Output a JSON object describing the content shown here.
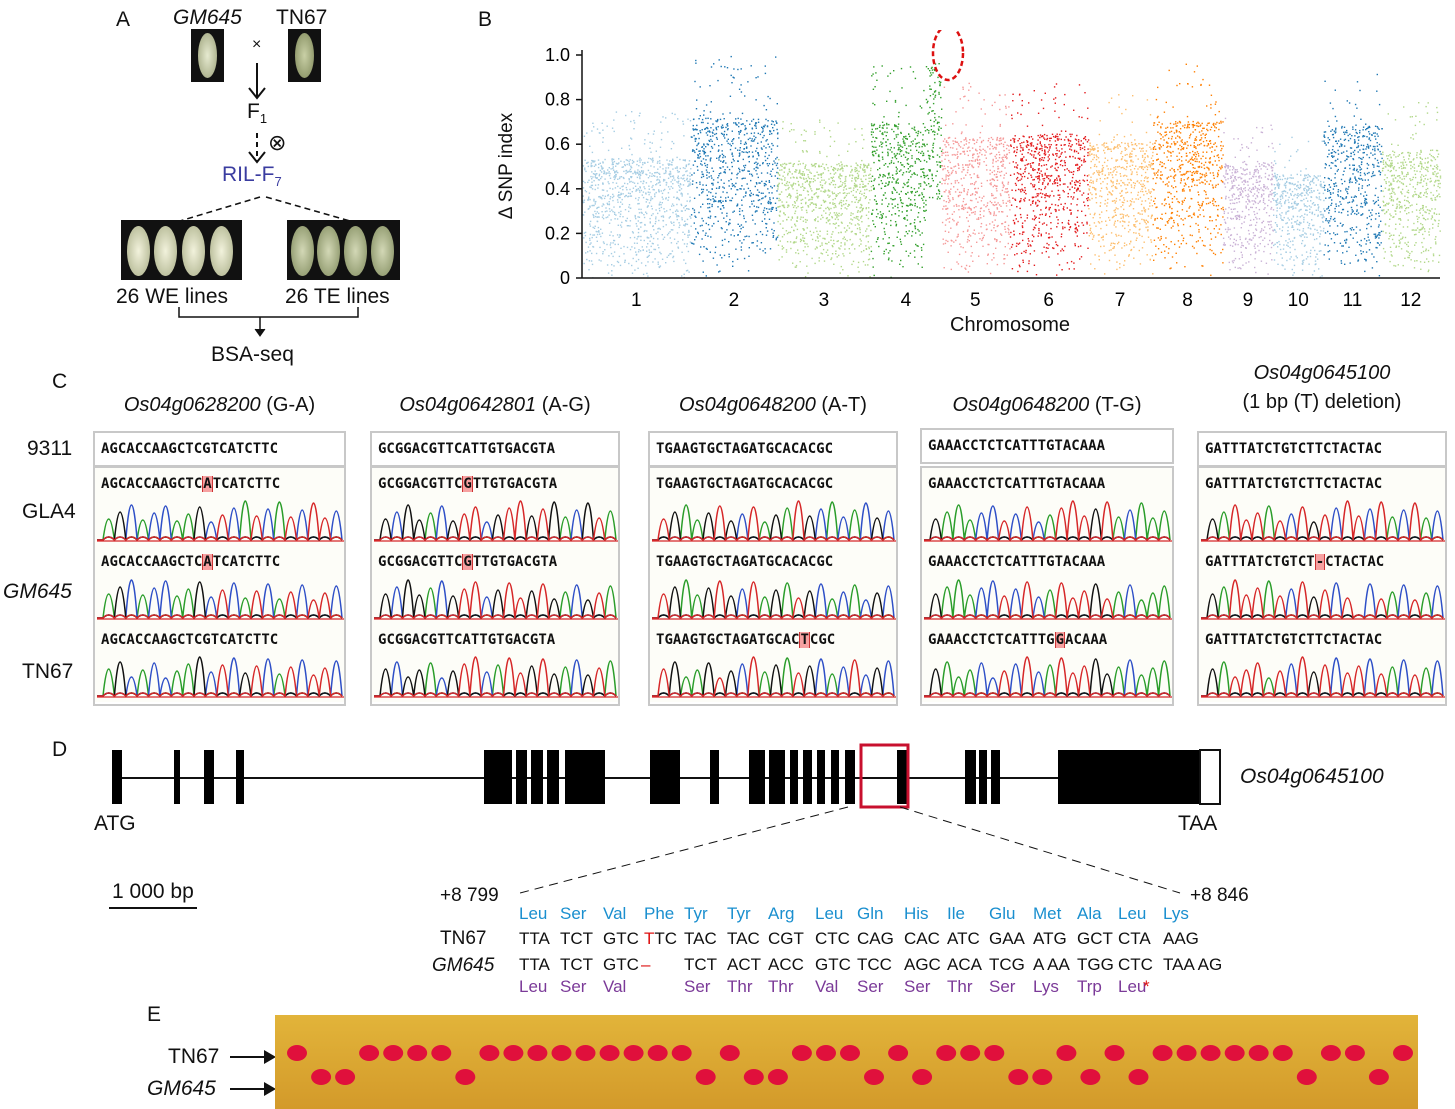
{
  "panel_a": {
    "label": "A",
    "parent1": "GM645",
    "parent2": "TN67",
    "cross_symbol": "×",
    "f1": "F",
    "f1_sub": "1",
    "self_symbol": "⊗",
    "ril": "RIL-F",
    "ril_sub": "7",
    "we_lines": "26 WE lines",
    "te_lines": "26 TE lines",
    "bsa": "BSA-seq"
  },
  "panel_b": {
    "label": "B",
    "ylabel": "Δ SNP index",
    "xlabel": "Chromosome",
    "yticks": [
      "0",
      "0.2",
      "0.4",
      "0.6",
      "0.8",
      "1.0"
    ],
    "chromosomes": [
      "1",
      "2",
      "3",
      "4",
      "5",
      "6",
      "7",
      "8",
      "9",
      "10",
      "11",
      "12"
    ],
    "colors": [
      "#a6cde3",
      "#1f78b4",
      "#b2d88a",
      "#33a02c",
      "#f59a99",
      "#e31a1c",
      "#fdbf6f",
      "#ff7f00",
      "#cab2d6",
      "#a6cde3",
      "#1f78b4",
      "#b2d88a"
    ]
  },
  "chart_data": {
    "type": "scatter",
    "xlabel": "Chromosome",
    "ylabel": "Δ SNP index",
    "ylim": [
      0,
      1.0
    ],
    "categories": [
      "1",
      "2",
      "3",
      "4",
      "5",
      "6",
      "7",
      "8",
      "9",
      "10",
      "11",
      "12"
    ],
    "series": [
      {
        "values_max": [
          0.75,
          1.0,
          0.72,
          0.97,
          0.88,
          0.9,
          0.85,
          0.98,
          0.72,
          0.65,
          0.95,
          0.8
        ]
      }
    ]
  },
  "panel_c": {
    "label": "C",
    "row_labels": [
      "9311",
      "GLA4",
      "GM645",
      "TN67"
    ],
    "genes": [
      {
        "name": "Os04g0628200",
        "change": " (G-A)",
        "seqs": [
          "AGCACCAAGCTCGTCATCTTC",
          "AGCACCAAGCTCATCATCTTC",
          "AGCACCAAGCTCATCATCTTC",
          "AGCACCAAGCTCGTCATCTTC"
        ]
      },
      {
        "name": "Os04g0642801",
        "change": " (A-G)",
        "seqs": [
          "GCGGACGTTCATTGTGACGTA",
          "GCGGACGTTCGTTGTGACGTA",
          "GCGGACGTTCGTTGTGACGTA",
          "GCGGACGTTCATTGTGACGTA"
        ]
      },
      {
        "name": "Os04g0648200",
        "change": " (A-T)",
        "seqs": [
          "TGAAGTGCTAGATGCACACGC",
          "TGAAGTGCTAGATGCACACGC",
          "TGAAGTGCTAGATGCACACGC",
          "TGAAGTGCTAGATGCACTCGC"
        ]
      },
      {
        "name": "Os04g0648200",
        "change": " (T-G)",
        "seqs": [
          "GAAACCTCTCATTTGTACAAA",
          "GAAACCTCTCATTTGTACAAA",
          "GAAACCTCTCATTTGTACAAA",
          "GAAACCTCTCATTTGGACAAA"
        ]
      },
      {
        "name": "Os04g0645100",
        "change": "(1 bp (T) deletion)",
        "seqs": [
          "GATTTATCTGTCTTCTACTAC",
          "GATTTATCTGTCTTCTACTAC",
          "GATTTATCTGTCT-CTACTAC",
          "GATTTATCTGTCTTCTACTAC"
        ]
      }
    ]
  },
  "panel_d": {
    "label": "D",
    "gene": "Os04g0645100",
    "start": "ATG",
    "stop": "TAA",
    "scale": "1 000 bp",
    "pos_left": "+8 799",
    "pos_right": "+8 846",
    "aa_top": [
      "Leu",
      "Ser",
      "Val",
      "Phe",
      "Tyr",
      "Tyr",
      "Arg",
      "Leu",
      "Gln",
      "His",
      "Ile",
      "Glu",
      "Met",
      "Ala",
      "Leu",
      "Lys"
    ],
    "row1_label": "TN67",
    "row1_codons": [
      "TTA",
      "TCT",
      "GTC",
      "TTC",
      "TAC",
      "TAC",
      "CGT",
      "CTC",
      "CAG",
      "CAC",
      "ATC",
      "GAA",
      "ATG",
      "GCT",
      "CTA",
      "AAG"
    ],
    "row2_label": "GM645",
    "row2_codons": [
      "TTA",
      "TCT",
      "GTC",
      "–",
      "TCT",
      "ACT",
      "ACC",
      "GTC",
      "TCC",
      "AGC",
      "ACA",
      "TCG",
      "A AA",
      "TGG",
      "CTC",
      "TAA AG"
    ],
    "aa_bottom": [
      "Leu",
      "Ser",
      "Val",
      "",
      "Ser",
      "Thr",
      "Thr",
      "Val",
      "Ser",
      "Ser",
      "Thr",
      "Ser",
      "Lys",
      "Trp",
      "Leu",
      "*"
    ]
  },
  "panel_e": {
    "label": "E",
    "marker1": "TN67",
    "marker2": "GM645",
    "lanes": [
      "T",
      "G",
      "G",
      "T",
      "T",
      "T",
      "T",
      "G",
      "T",
      "T",
      "T",
      "T",
      "T",
      "T",
      "T",
      "T",
      "T",
      "G",
      "T",
      "G",
      "G",
      "T",
      "T",
      "T",
      "G",
      "T",
      "G",
      "T",
      "T",
      "T",
      "G",
      "G",
      "T",
      "G",
      "T",
      "G",
      "T",
      "T",
      "T",
      "T",
      "T",
      "T",
      "G",
      "T",
      "T",
      "G",
      "T"
    ]
  }
}
